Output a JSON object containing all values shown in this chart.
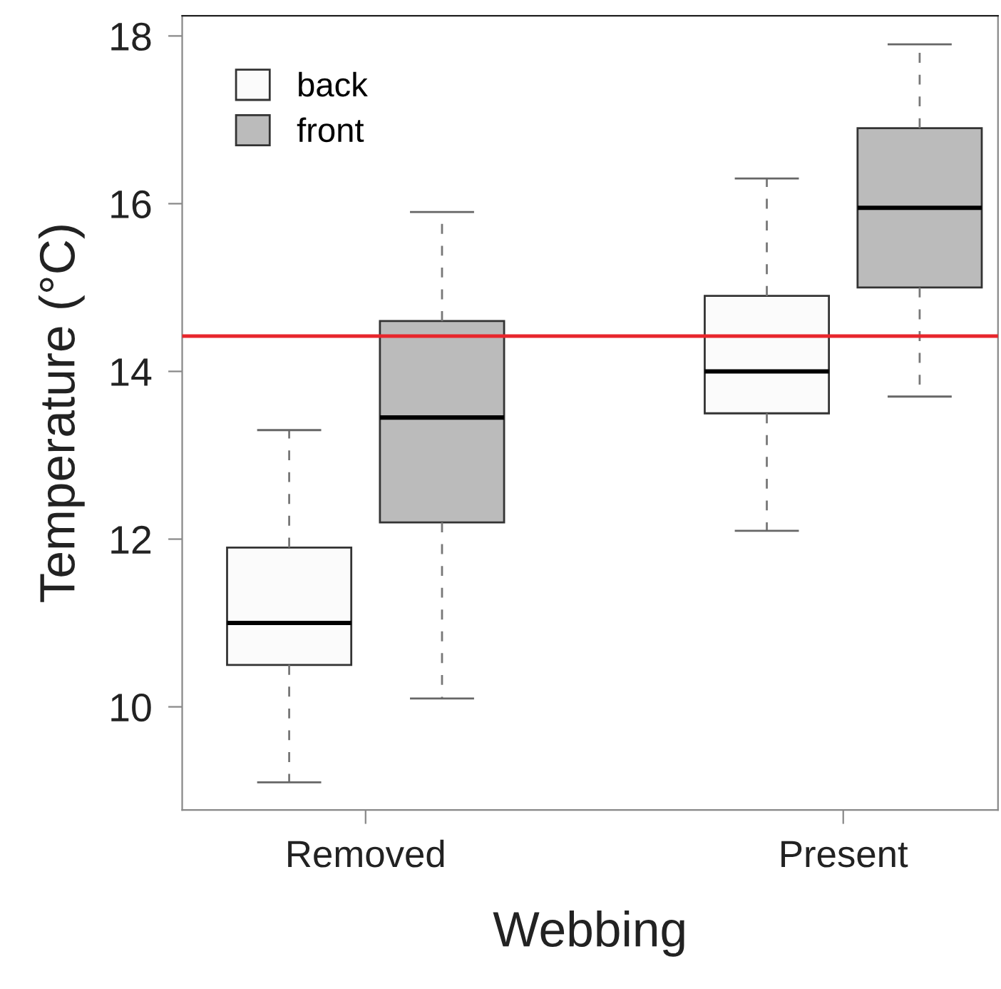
{
  "chart_data": {
    "type": "box",
    "xlabel": "Webbing",
    "ylabel": "Temperature (°C)",
    "categories": [
      "Removed",
      "Present"
    ],
    "series": [
      {
        "name": "back",
        "color": "#fbfbfb",
        "boxes": [
          {
            "low": 9.1,
            "q1": 10.5,
            "median": 11.0,
            "q3": 11.9,
            "high": 13.3
          },
          {
            "low": 12.1,
            "q1": 13.5,
            "median": 14.0,
            "q3": 14.9,
            "high": 16.3
          }
        ]
      },
      {
        "name": "front",
        "color": "#bbbbbb",
        "boxes": [
          {
            "low": 10.1,
            "q1": 12.2,
            "median": 13.45,
            "q3": 14.6,
            "high": 15.9
          },
          {
            "low": 13.7,
            "q1": 15.0,
            "median": 15.95,
            "q3": 16.9,
            "high": 17.9
          }
        ]
      }
    ],
    "ylim": [
      8.77,
      18.24
    ],
    "yticks": [
      10,
      12,
      14,
      16,
      18
    ],
    "ref_lines": [
      {
        "axis": "y",
        "value": 14.42,
        "color": "#e8262c"
      }
    ],
    "legend": "top left",
    "grid": false
  }
}
